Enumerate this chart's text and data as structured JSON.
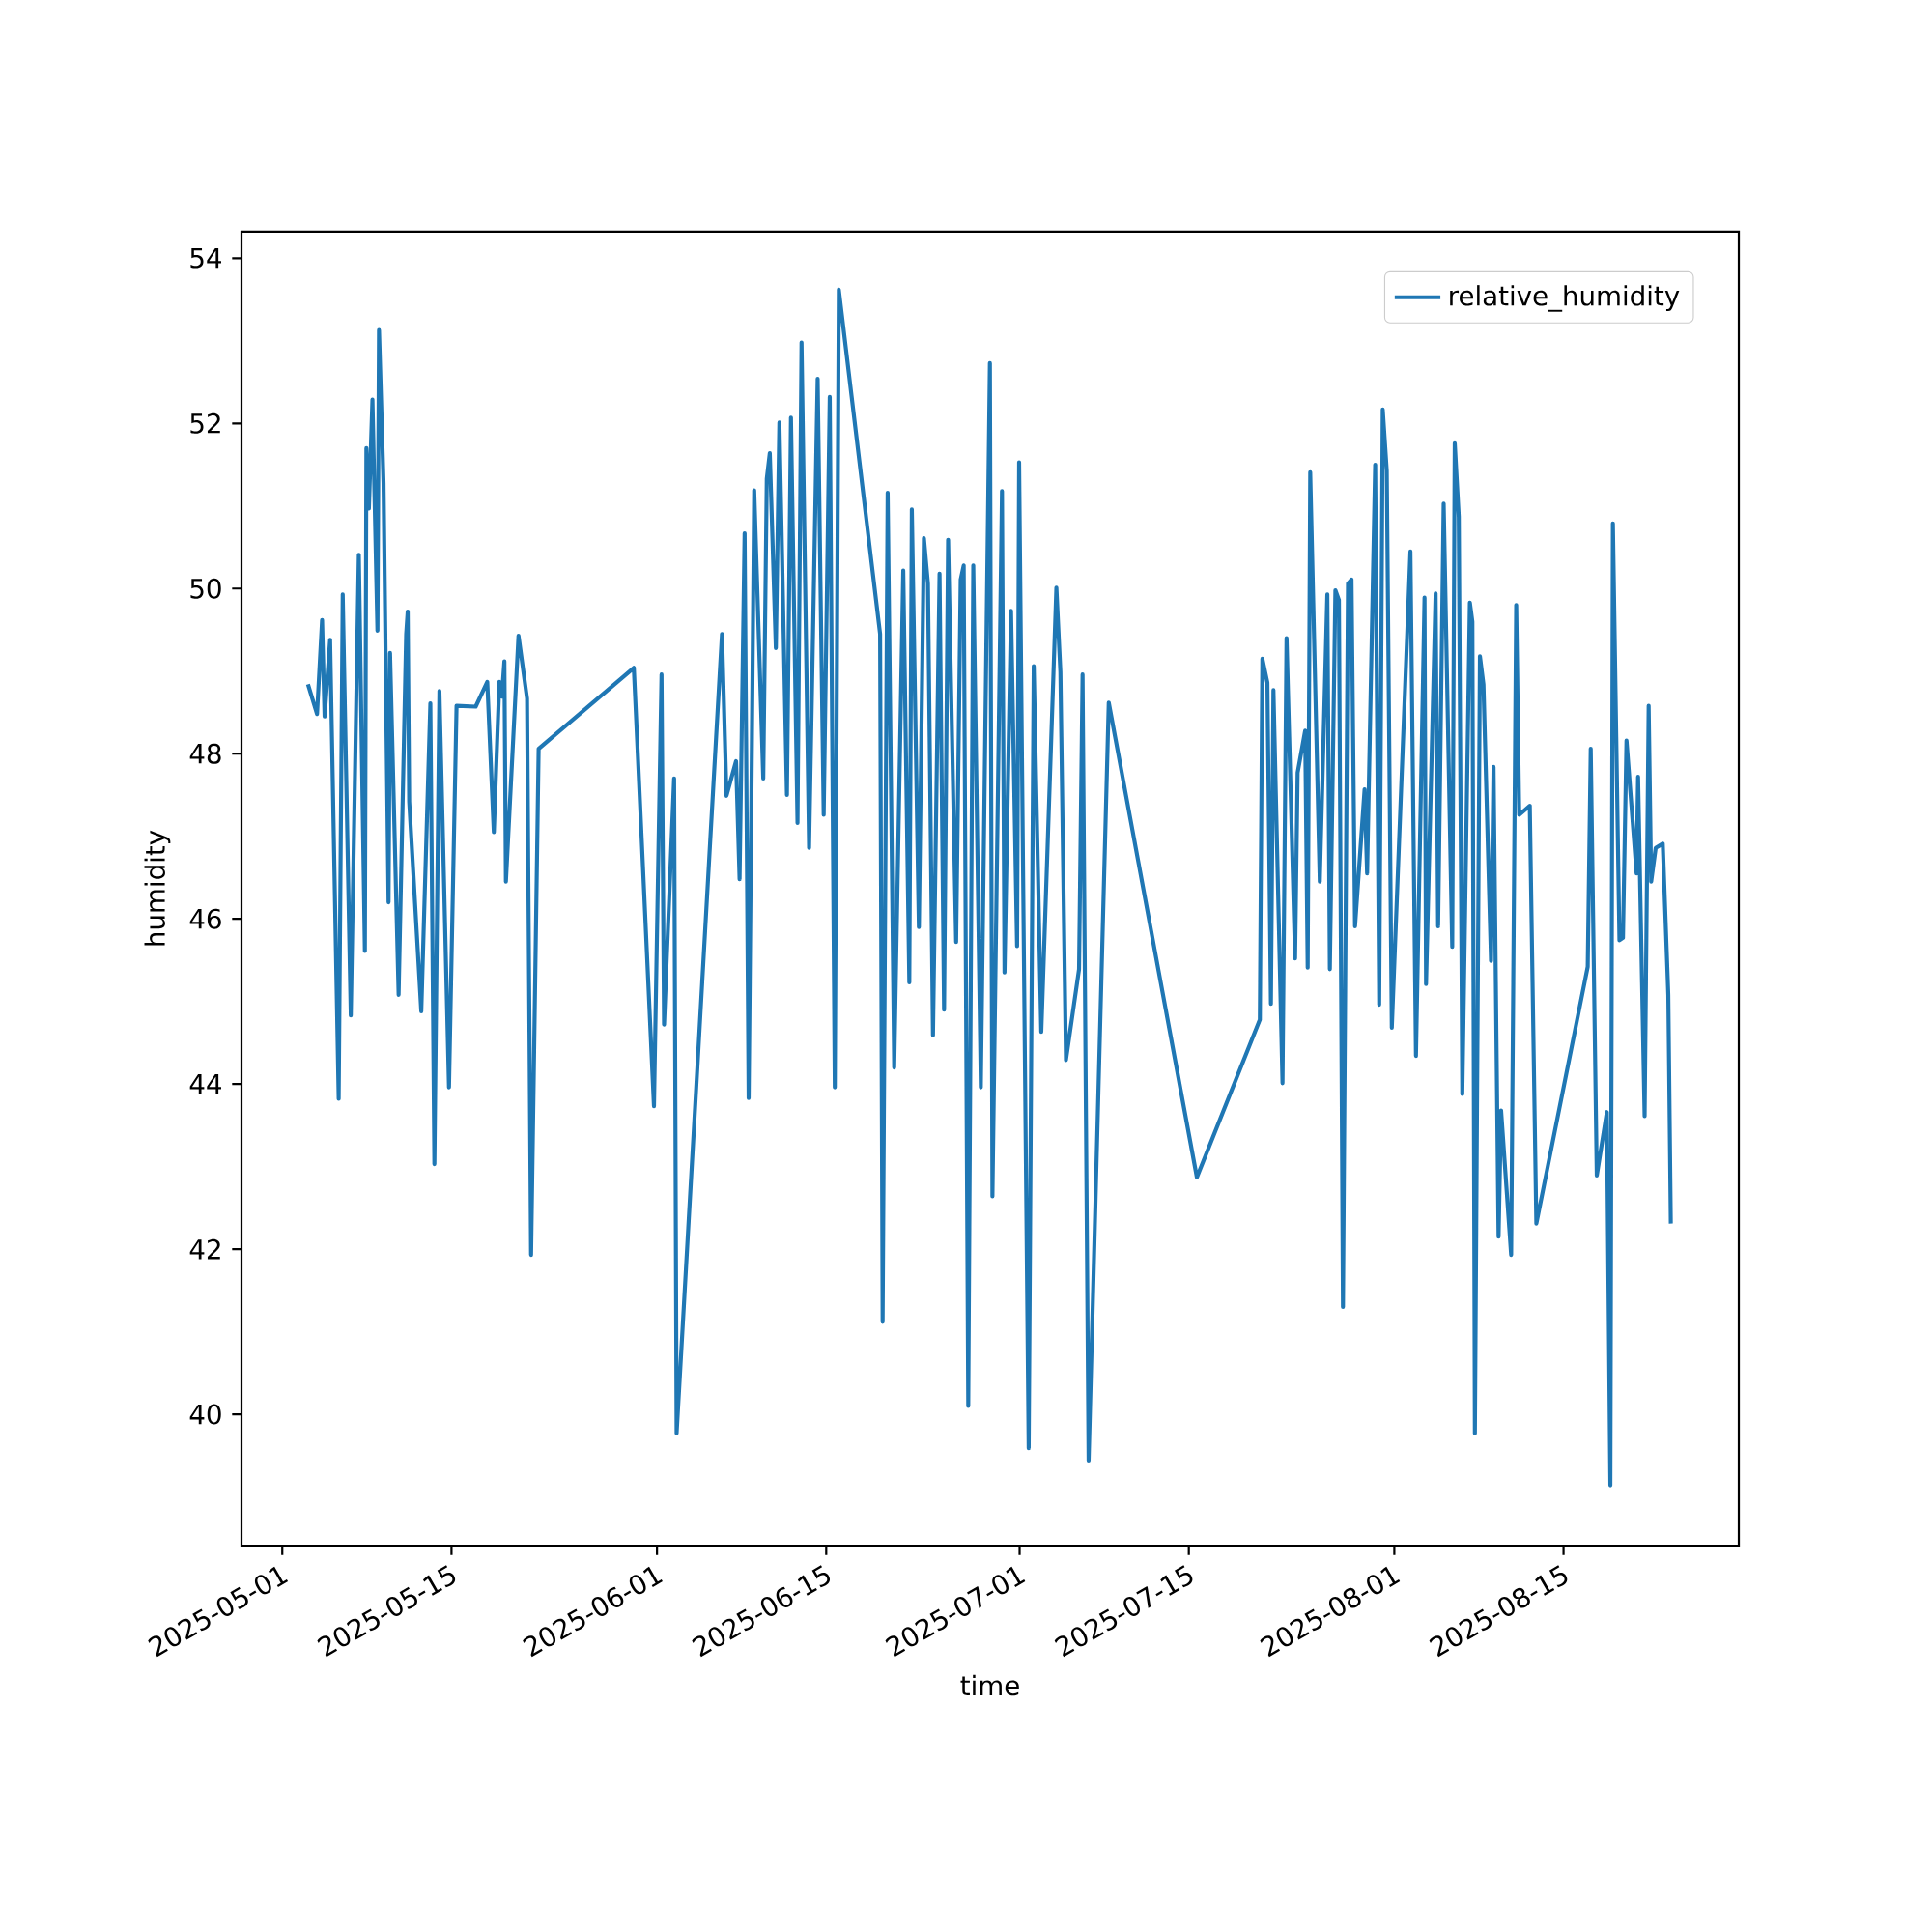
{
  "chart_data": {
    "type": "line",
    "xlabel": "time",
    "ylabel": "humidity",
    "legend": "top right",
    "x": [
      "2025-05-03T03:00",
      "2025-05-03T21:00",
      "2025-05-04T07:00",
      "2025-05-04T12:00",
      "2025-05-04T23:00",
      "2025-05-05T16:00",
      "2025-05-06T00:00",
      "2025-05-06T16:00",
      "2025-05-07T08:00",
      "2025-05-07T20:00",
      "2025-05-07T23:00",
      "2025-05-08T04:00",
      "2025-05-08T11:00",
      "2025-05-08T21:00",
      "2025-05-09T00:00",
      "2025-05-09T09:00",
      "2025-05-09T19:00",
      "2025-05-09T22:00",
      "2025-05-10T15:00",
      "2025-05-11T06:00",
      "2025-05-11T09:00",
      "2025-05-11T12:00",
      "2025-05-12T12:00",
      "2025-05-13T06:00",
      "2025-05-13T14:00",
      "2025-05-14T00:00",
      "2025-05-14T19:00",
      "2025-05-15T10:00",
      "2025-05-17T00:00",
      "2025-05-17T23:00",
      "2025-05-18T12:00",
      "2025-05-18T23:00",
      "2025-05-19T04:00",
      "2025-05-19T09:00",
      "2025-05-19T12:00",
      "2025-05-20T13:00",
      "2025-05-21T06:00",
      "2025-05-21T14:00",
      "2025-05-22T05:00",
      "2025-05-30T02:00",
      "2025-05-31T18:00",
      "2025-06-01T09:00",
      "2025-06-01T14:00",
      "2025-06-02T10:00",
      "2025-06-02T15:00",
      "2025-06-06T09:00",
      "2025-06-06T18:00",
      "2025-06-07T13:00",
      "2025-06-07T20:00",
      "2025-06-08T06:00",
      "2025-06-08T14:00",
      "2025-06-09T01:00",
      "2025-06-09T19:00",
      "2025-06-10T02:00",
      "2025-06-10T08:00",
      "2025-06-10T20:00",
      "2025-06-11T03:00",
      "2025-06-11T18:00",
      "2025-06-12T02:00",
      "2025-06-12T15:00",
      "2025-06-12T23:00",
      "2025-06-13T14:00",
      "2025-06-14T07:00",
      "2025-06-14T19:00",
      "2025-06-15T07:00",
      "2025-06-15T17:00",
      "2025-06-16T01:00",
      "2025-06-19T11:00",
      "2025-06-19T16:00",
      "2025-06-20T02:00",
      "2025-06-20T15:00",
      "2025-06-21T09:00",
      "2025-06-21T21:00",
      "2025-06-22T02:00",
      "2025-06-22T16:00",
      "2025-06-23T02:00",
      "2025-06-23T10:00",
      "2025-06-23T20:00",
      "2025-06-24T09:00",
      "2025-06-24T18:00",
      "2025-06-25T02:00",
      "2025-06-25T18:00",
      "2025-06-26T03:00",
      "2025-06-26T09:00",
      "2025-06-26T18:00",
      "2025-06-27T04:00",
      "2025-06-27T19:00",
      "2025-06-28T13:00",
      "2025-06-28T18:00",
      "2025-06-29T13:00",
      "2025-06-29T18:00",
      "2025-06-30T07:00",
      "2025-06-30T19:00",
      "2025-06-30T23:00",
      "2025-07-01T18:00",
      "2025-07-02T04:00",
      "2025-07-02T19:00",
      "2025-07-04T01:00",
      "2025-07-04T09:00",
      "2025-07-04T20:00",
      "2025-07-05T22:00",
      "2025-07-06T05:00",
      "2025-07-06T17:00",
      "2025-07-08T09:00",
      "2025-07-15T16:00",
      "2025-07-20T21:00",
      "2025-07-21T02:00",
      "2025-07-21T12:00",
      "2025-07-21T19:00",
      "2025-07-22T00:00",
      "2025-07-22T18:00",
      "2025-07-23T02:00",
      "2025-07-23T19:00",
      "2025-07-24T00:00",
      "2025-07-24T15:00",
      "2025-07-24T20:00",
      "2025-07-25T01:00",
      "2025-07-25T20:00",
      "2025-07-26T11:00",
      "2025-07-26T16:00",
      "2025-07-27T03:00",
      "2025-07-27T10:00",
      "2025-07-27T18:00",
      "2025-07-28T04:00",
      "2025-07-28T11:00",
      "2025-07-28T18:00",
      "2025-07-29T13:00",
      "2025-07-29T18:00",
      "2025-07-30T10:00",
      "2025-07-30T18:00",
      "2025-07-31T01:00",
      "2025-07-31T09:00",
      "2025-07-31T19:00",
      "2025-08-02T08:00",
      "2025-08-02T19:00",
      "2025-08-03T12:00",
      "2025-08-03T15:00",
      "2025-08-04T10:00",
      "2025-08-04T15:00",
      "2025-08-05T02:00",
      "2025-08-05T19:00",
      "2025-08-06T00:00",
      "2025-08-06T08:00",
      "2025-08-06T15:00",
      "2025-08-07T06:00",
      "2025-08-07T11:00",
      "2025-08-07T16:00",
      "2025-08-08T02:00",
      "2025-08-08T09:00",
      "2025-08-09T00:00",
      "2025-08-09T05:00",
      "2025-08-09T15:00",
      "2025-08-09T20:00",
      "2025-08-10T16:00",
      "2025-08-11T02:00",
      "2025-08-11T08:00",
      "2025-08-12T05:00",
      "2025-08-12T18:00",
      "2025-08-17T00:00",
      "2025-08-17T06:00",
      "2025-08-17T18:00",
      "2025-08-18T14:00",
      "2025-08-18T21:00",
      "2025-08-19T02:00",
      "2025-08-19T15:00",
      "2025-08-19T22:00",
      "2025-08-20T05:00",
      "2025-08-21T01:00",
      "2025-08-21T04:00",
      "2025-08-21T17:00",
      "2025-08-22T01:00",
      "2025-08-22T06:00",
      "2025-08-22T15:00",
      "2025-08-23T05:00",
      "2025-08-23T16:00",
      "2025-08-23T21:00"
    ],
    "series": [
      {
        "name": "relative_humidity",
        "color": "#1f77b4",
        "values": [
          48.84,
          48.48,
          49.62,
          48.45,
          49.38,
          43.82,
          49.93,
          44.83,
          50.41,
          45.61,
          51.7,
          50.97,
          52.29,
          49.49,
          53.13,
          51.28,
          46.2,
          49.22,
          45.08,
          49.45,
          49.72,
          47.42,
          44.88,
          48.61,
          43.03,
          48.76,
          43.96,
          48.58,
          48.57,
          48.87,
          47.05,
          48.87,
          48.69,
          49.12,
          46.45,
          49.43,
          48.67,
          41.93,
          48.06,
          49.04,
          43.73,
          48.96,
          44.72,
          47.7,
          39.77,
          49.45,
          47.49,
          47.91,
          46.48,
          50.67,
          43.83,
          51.19,
          47.7,
          51.33,
          51.64,
          49.28,
          52.01,
          47.5,
          52.07,
          47.16,
          52.98,
          46.86,
          52.54,
          47.26,
          52.32,
          43.96,
          53.62,
          49.45,
          41.12,
          51.16,
          44.2,
          50.22,
          45.23,
          50.96,
          45.9,
          50.61,
          50.06,
          44.59,
          50.18,
          44.9,
          50.59,
          45.72,
          50.11,
          50.28,
          40.1,
          50.28,
          43.96,
          52.73,
          42.64,
          51.18,
          45.35,
          49.73,
          45.67,
          51.53,
          39.59,
          49.06,
          44.63,
          50.01,
          48.99,
          44.29,
          45.39,
          48.96,
          39.44,
          48.62,
          42.87,
          44.78,
          49.15,
          48.86,
          44.97,
          48.77,
          44.01,
          49.4,
          45.52,
          47.77,
          48.28,
          45.41,
          51.41,
          46.45,
          49.93,
          45.39,
          49.98,
          49.86,
          41.3,
          50.06,
          50.11,
          45.91,
          47.57,
          46.55,
          51.5,
          44.96,
          52.17,
          51.43,
          44.68,
          50.45,
          44.34,
          49.89,
          45.21,
          49.94,
          45.91,
          51.03,
          45.66,
          51.76,
          50.87,
          43.88,
          49.83,
          49.6,
          39.77,
          49.18,
          48.84,
          45.49,
          47.84,
          42.15,
          43.68,
          41.93,
          49.8,
          47.26,
          47.37,
          42.31,
          45.42,
          48.06,
          42.89,
          43.66,
          39.14,
          50.79,
          45.74,
          45.77,
          48.16,
          46.55,
          47.72,
          43.61,
          48.58,
          46.45,
          46.86,
          46.91,
          45.08,
          42.31
        ]
      }
    ],
    "xlim": [
      "2025-04-27T15:00",
      "2025-08-29T12:00"
    ],
    "xticks": [
      "2025-05-01",
      "2025-05-15",
      "2025-06-01",
      "2025-06-15",
      "2025-07-01",
      "2025-07-15",
      "2025-08-01",
      "2025-08-15"
    ],
    "ylim": [
      38.41,
      54.32
    ],
    "yticks": [
      40,
      42,
      44,
      46,
      48,
      50,
      52,
      54
    ]
  }
}
